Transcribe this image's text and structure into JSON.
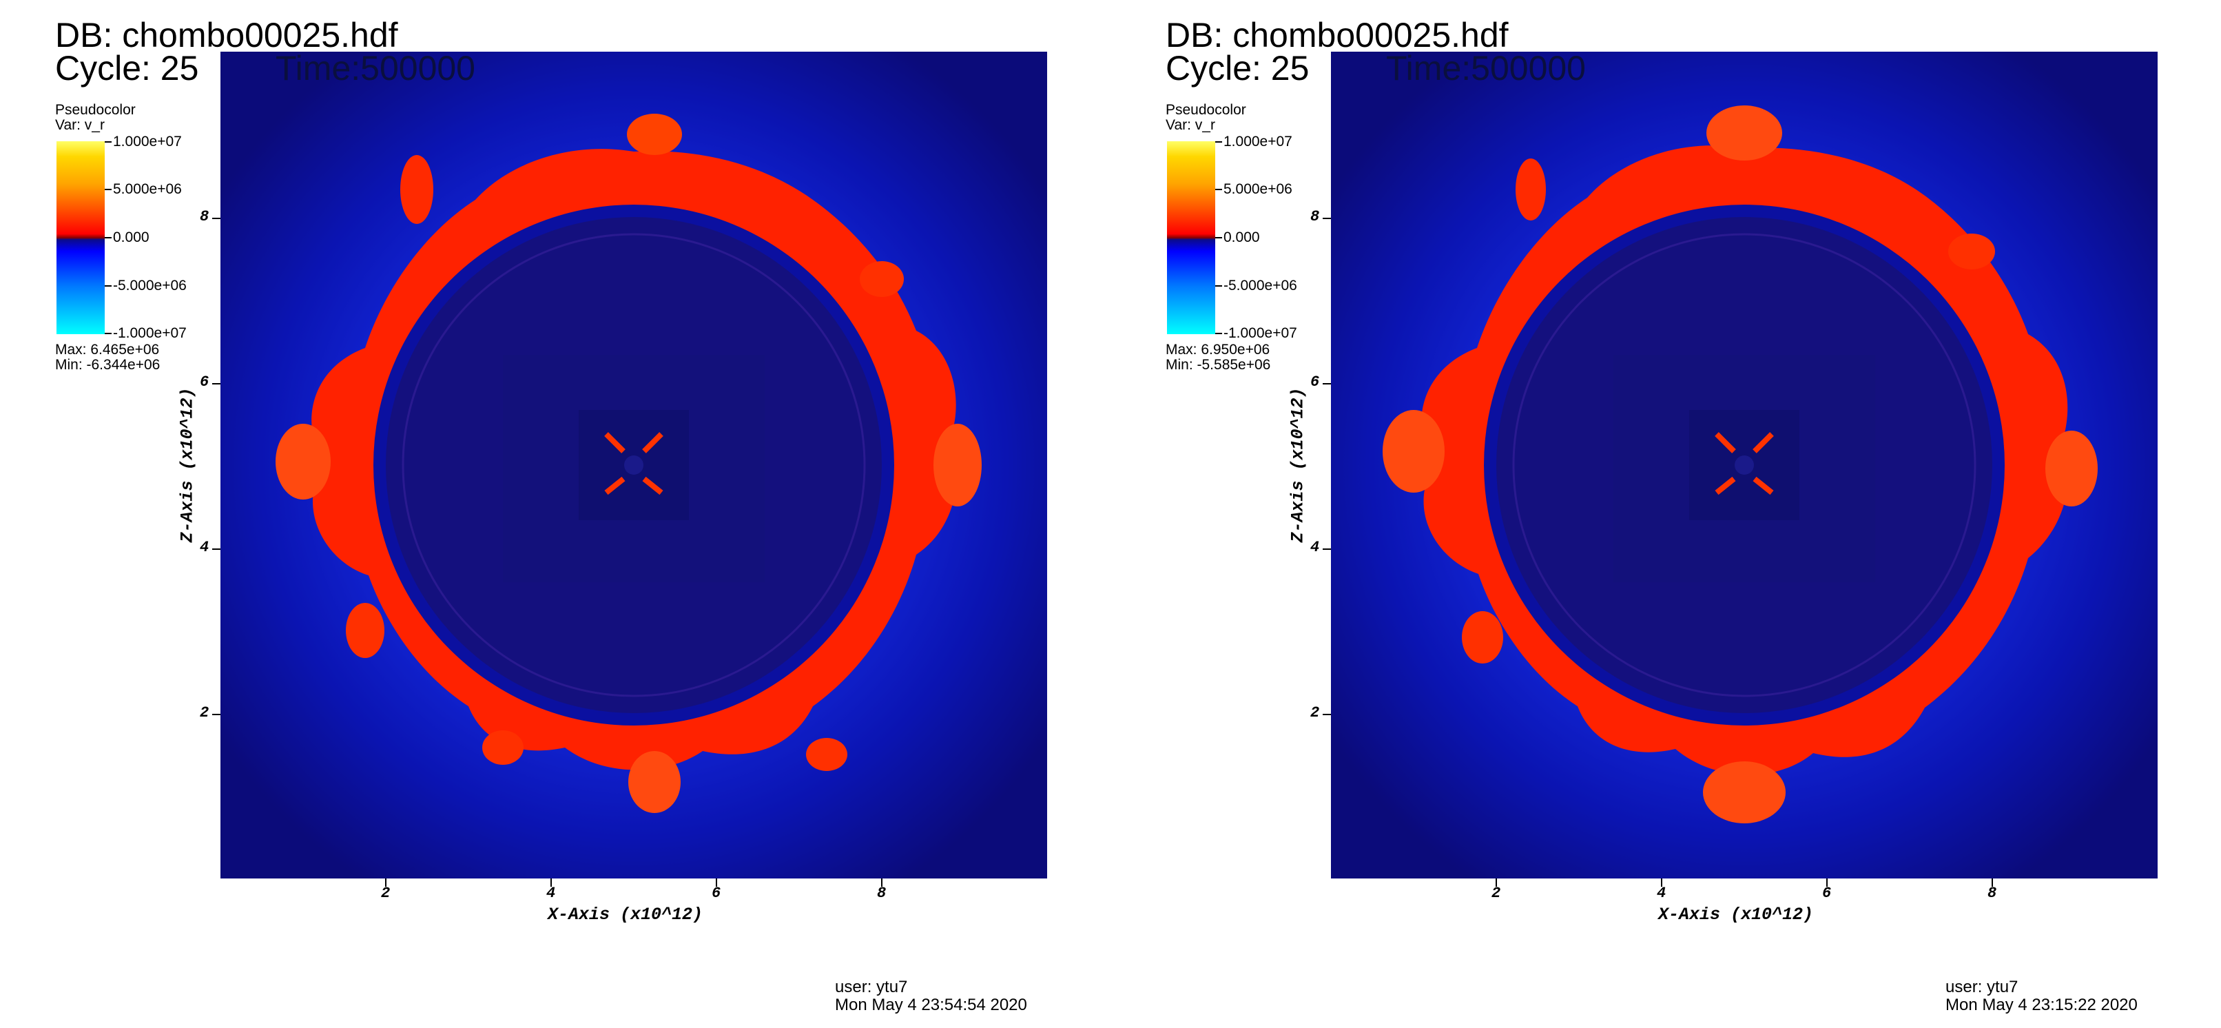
{
  "panels": [
    {
      "db_title": "DB: chombo00025.hdf",
      "cycle": "Cycle: 25",
      "time": "Time:500000",
      "legend": {
        "title": "Pseudocolor",
        "var": "Var: v_r",
        "ticks": [
          "1.000e+07",
          "5.000e+06",
          "0.000",
          "-5.000e+06",
          "-1.000e+07"
        ],
        "max": "Max:  6.465e+06",
        "min": "Min: -6.344e+06"
      },
      "x_axis_title": "X-Axis (x10^12)",
      "y_axis_title": "Z-Axis (x10^12)",
      "x_ticks": [
        "2",
        "4",
        "6",
        "8"
      ],
      "y_ticks": [
        "8",
        "6",
        "4",
        "2"
      ],
      "user": "user: ytu7",
      "date": "Mon May  4 23:54:54 2020"
    },
    {
      "db_title": "DB: chombo00025.hdf",
      "cycle": "Cycle: 25",
      "time": "Time:500000",
      "legend": {
        "title": "Pseudocolor",
        "var": "Var: v_r",
        "ticks": [
          "1.000e+07",
          "5.000e+06",
          "0.000",
          "-5.000e+06",
          "-1.000e+07"
        ],
        "max": "Max:  6.950e+06",
        "min": "Min: -5.585e+06"
      },
      "x_axis_title": "X-Axis (x10^12)",
      "y_axis_title": "Z-Axis (x10^12)",
      "x_ticks": [
        "2",
        "4",
        "6",
        "8"
      ],
      "y_ticks": [
        "8",
        "6",
        "4",
        "2"
      ],
      "user": "user: ytu7",
      "date": "Mon May  4 23:15:22 2020"
    }
  ],
  "colors": {
    "background_field": "#0b0b7a",
    "blue_region": "#1a2cff",
    "ring": "#ff2200",
    "hot": "#ff7a1a",
    "inner_disk": "#14107e"
  },
  "axis_range": {
    "x": [
      0,
      10
    ],
    "z": [
      0,
      10
    ]
  }
}
